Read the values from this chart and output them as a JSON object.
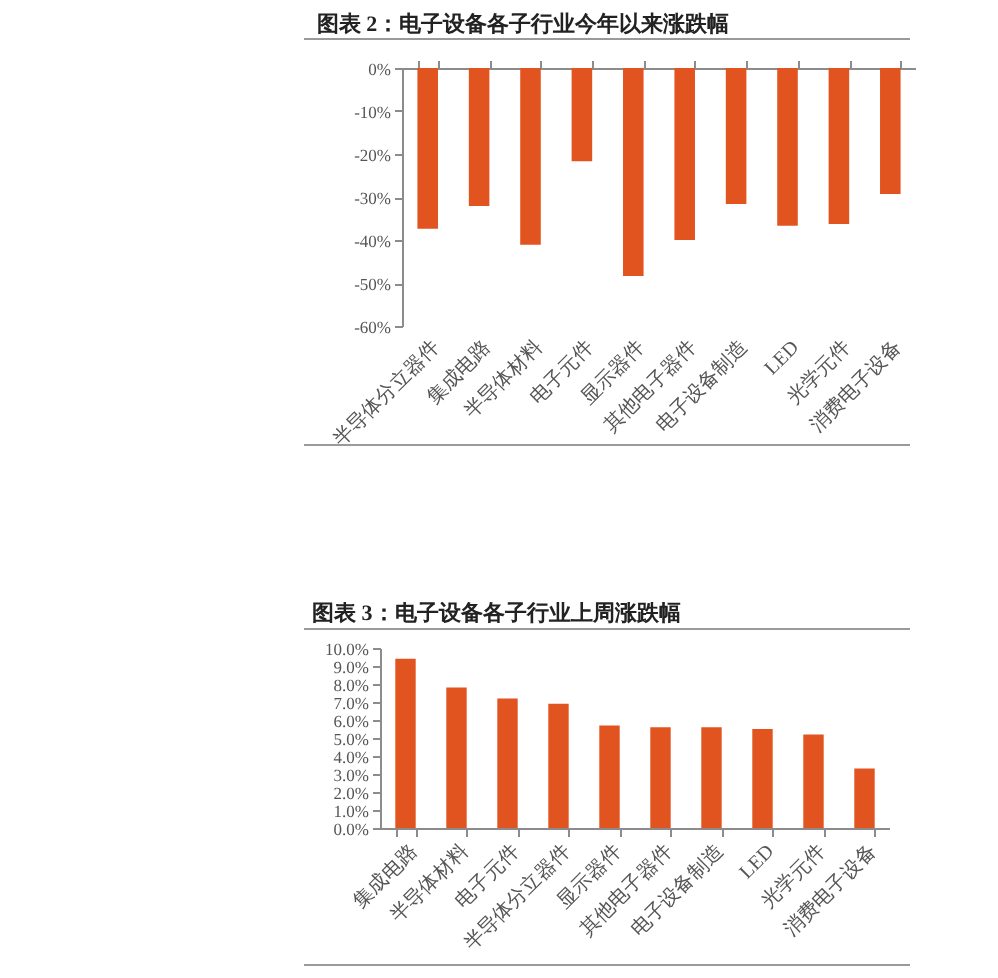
{
  "chart_data": [
    {
      "type": "bar",
      "title": "图表 2：电子设备各子行业今年以来涨跌幅",
      "categories": [
        "半导体分立器件",
        "集成电路",
        "半导体材料",
        "电子元件",
        "显示器件",
        "其他电子器件",
        "电子设备制造",
        "LED",
        "光学元件",
        "消费电子设备"
      ],
      "values": [
        -37.4,
        -32.1,
        -41.1,
        -21.7,
        -48.4,
        -40.0,
        -31.6,
        -36.7,
        -36.3,
        -29.3
      ],
      "color": "#e2541f",
      "ylim": [
        -60,
        0
      ],
      "yticks": [
        {
          "value": -60,
          "label": "-60%"
        },
        {
          "value": -50,
          "label": "-50%"
        },
        {
          "value": -40,
          "label": "-40%"
        },
        {
          "value": -30,
          "label": "-30%"
        },
        {
          "value": -20,
          "label": "-20%"
        },
        {
          "value": -10,
          "label": "-10%"
        },
        {
          "value": 0,
          "label": "0%"
        }
      ]
    },
    {
      "type": "bar",
      "title": "图表 3：电子设备各子行业上周涨跌幅",
      "categories": [
        "集成电路",
        "半导体材料",
        "电子元件",
        "半导体分立器件",
        "显示器件",
        "其他电子器件",
        "电子设备制造",
        "LED",
        "光学元件",
        "消费电子设备"
      ],
      "values": [
        9.4,
        7.8,
        7.2,
        6.9,
        5.7,
        5.6,
        5.6,
        5.5,
        5.2,
        3.3
      ],
      "color": "#e2541f",
      "ylim": [
        0,
        10
      ],
      "yticks": [
        {
          "value": 0,
          "label": "0.0%"
        },
        {
          "value": 1,
          "label": "1.0%"
        },
        {
          "value": 2,
          "label": "2.0%"
        },
        {
          "value": 3,
          "label": "3.0%"
        },
        {
          "value": 4,
          "label": "4.0%"
        },
        {
          "value": 5,
          "label": "5.0%"
        },
        {
          "value": 6,
          "label": "6.0%"
        },
        {
          "value": 7,
          "label": "7.0%"
        },
        {
          "value": 8,
          "label": "8.0%"
        },
        {
          "value": 9,
          "label": "9.0%"
        },
        {
          "value": 10,
          "label": "10.0%"
        }
      ]
    }
  ]
}
